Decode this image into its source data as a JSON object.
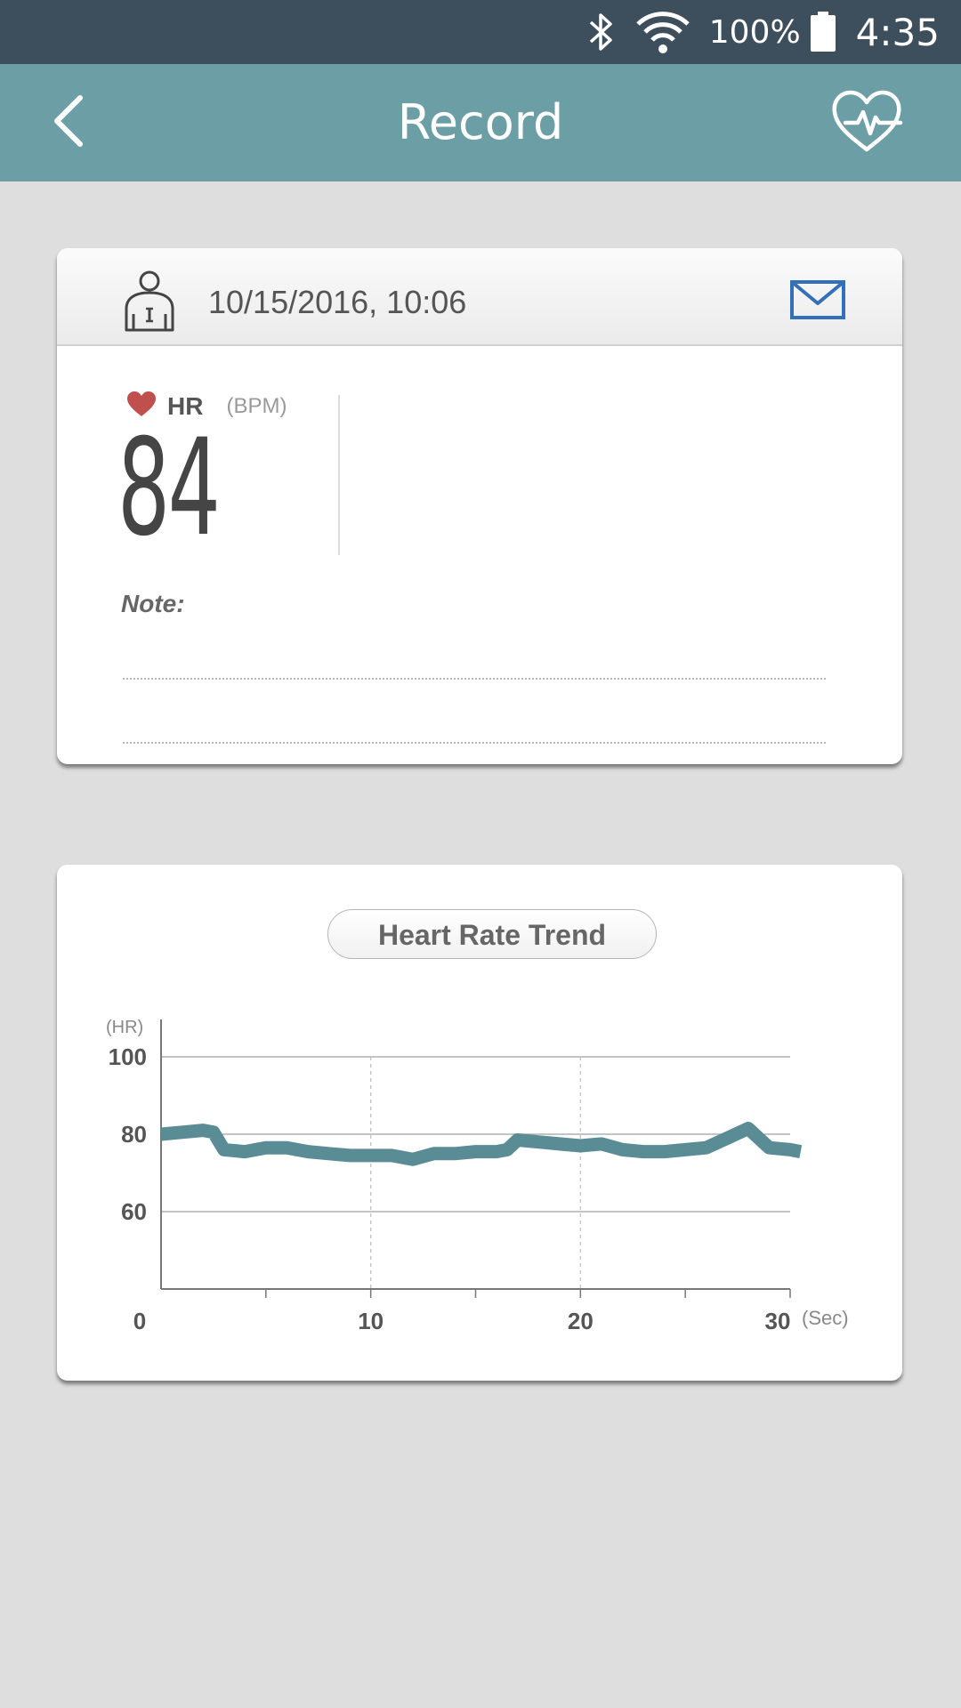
{
  "status_bar": {
    "battery": "100%",
    "time": "4:35",
    "icons": [
      "bluetooth-icon",
      "wifi-icon",
      "battery-icon"
    ]
  },
  "app_bar": {
    "title": "Record",
    "back_icon": "chevron-left-icon",
    "action_icon": "heart-pulse-icon"
  },
  "record": {
    "datetime": "10/15/2016, 10:06",
    "hr_label": "HR",
    "hr_unit": "(BPM)",
    "hr_value": "84",
    "note_label": "Note:",
    "note_value": ""
  },
  "colors": {
    "status_bar": "#3d4e5d",
    "app_bar": "#6c9ea5",
    "heart": "#c0504d",
    "mail": "#3370b8",
    "trend_line": "#5a8c96"
  },
  "chart_data": {
    "type": "line",
    "title": "Heart Rate Trend",
    "ylabel": "(HR)",
    "xlabel": "(Sec)",
    "xlim": [
      0,
      30
    ],
    "ylim": [
      40,
      100
    ],
    "x_ticks": [
      0,
      10,
      20,
      30
    ],
    "y_ticks": [
      100,
      80,
      60
    ],
    "grid": true,
    "series": [
      {
        "values": [
          [
            0,
            80
          ],
          [
            1,
            80.5
          ],
          [
            2,
            81
          ],
          [
            2.5,
            80.5
          ],
          [
            3,
            76
          ],
          [
            4,
            75.5
          ],
          [
            5,
            76.5
          ],
          [
            6,
            76.5
          ],
          [
            7,
            75.5
          ],
          [
            8,
            75
          ],
          [
            9,
            74.5
          ],
          [
            10,
            74.5
          ],
          [
            11,
            74.5
          ],
          [
            12,
            73.5
          ],
          [
            13,
            75
          ],
          [
            14,
            75
          ],
          [
            15,
            75.5
          ],
          [
            16,
            75.5
          ],
          [
            16.5,
            76
          ],
          [
            17,
            78.5
          ],
          [
            18,
            78
          ],
          [
            19,
            77.5
          ],
          [
            20,
            77
          ],
          [
            21,
            77.5
          ],
          [
            22,
            76
          ],
          [
            23,
            75.5
          ],
          [
            24,
            75.5
          ],
          [
            25,
            76
          ],
          [
            26,
            76.5
          ],
          [
            27,
            79
          ],
          [
            28,
            81.5
          ],
          [
            28.5,
            79
          ],
          [
            29,
            76.5
          ],
          [
            30,
            76
          ],
          [
            30.5,
            75.5
          ]
        ]
      }
    ]
  }
}
